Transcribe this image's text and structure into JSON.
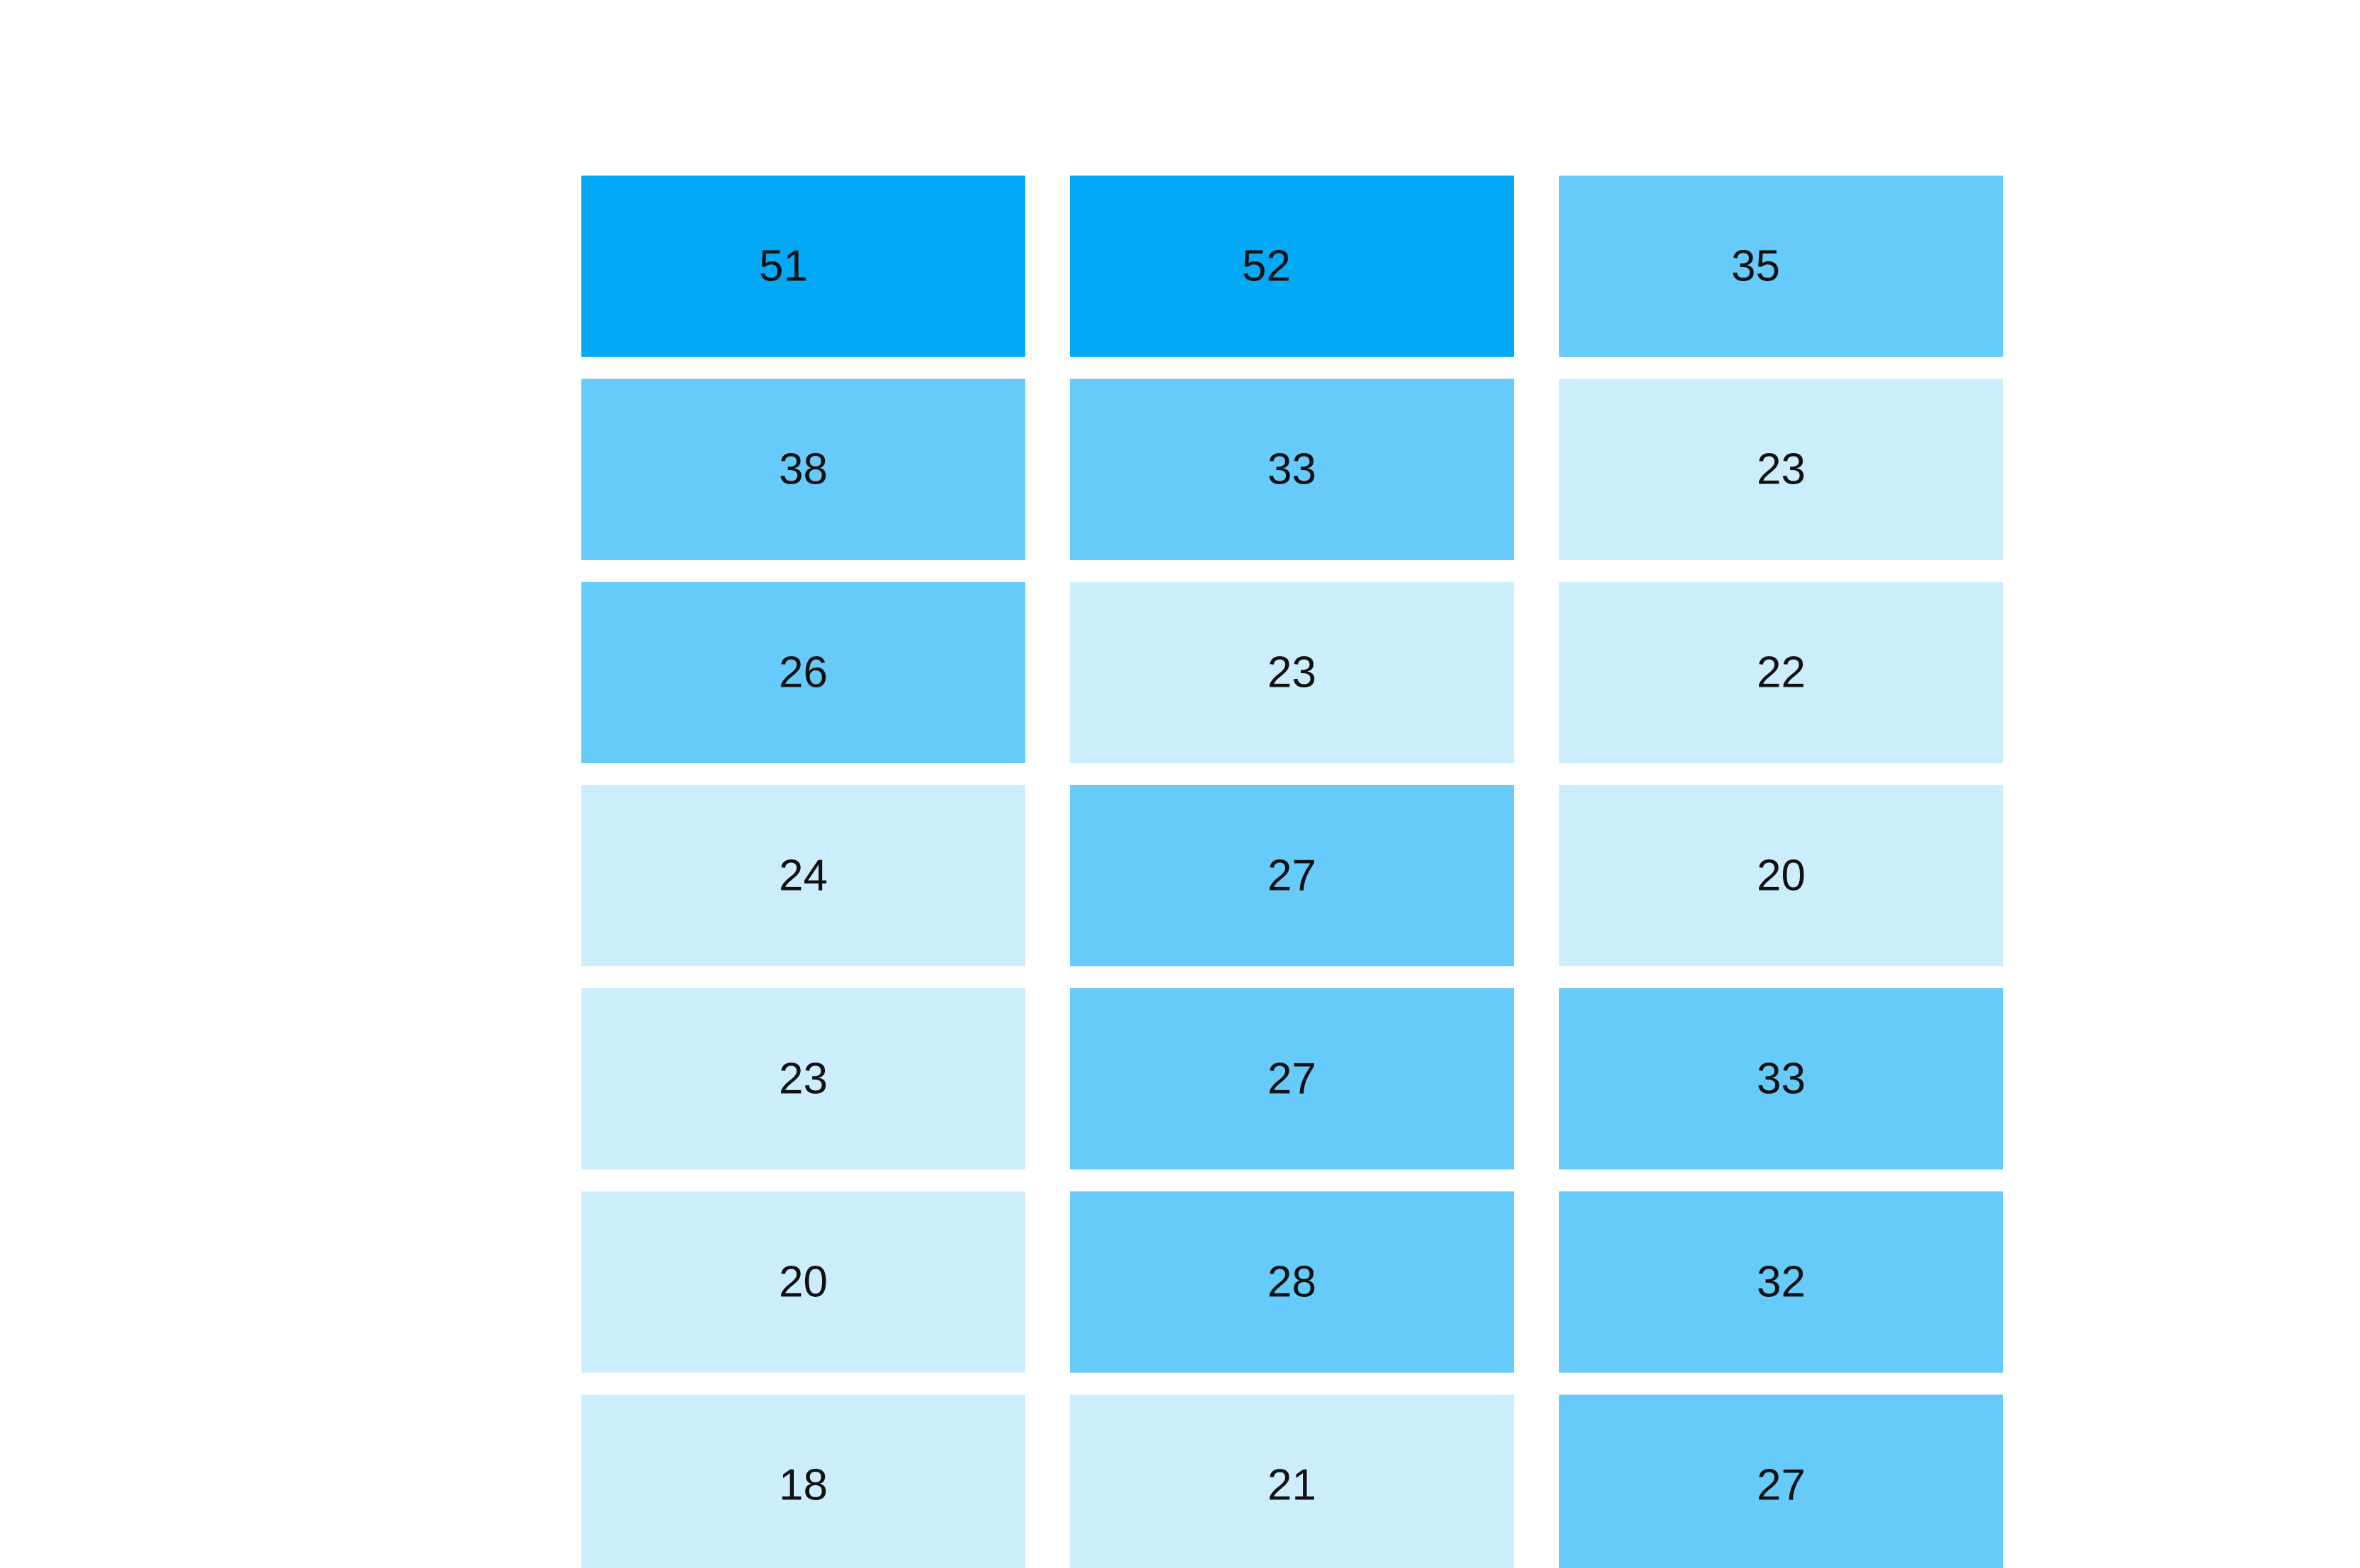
{
  "chart_data": {
    "type": "heatmap",
    "columns": 3,
    "rows": 7,
    "values": [
      [
        51,
        52,
        35
      ],
      [
        38,
        33,
        23
      ],
      [
        26,
        23,
        22
      ],
      [
        24,
        27,
        20
      ],
      [
        23,
        27,
        33
      ],
      [
        20,
        28,
        32
      ],
      [
        18,
        21,
        27
      ]
    ],
    "color_scale": {
      "high": {
        "min": 50,
        "color": "#03a9f4"
      },
      "mid": {
        "min": 25,
        "color": "#66cafa"
      },
      "low": {
        "min": 0,
        "color": "#ccedfc"
      }
    },
    "special_colors": [
      {
        "row": 0,
        "col": 2,
        "color": "#66cafa"
      },
      {
        "row": 1,
        "col": 2,
        "color": "#ccedfc"
      },
      {
        "row": 2,
        "col": 1,
        "color": "#ccedfc"
      },
      {
        "row": 3,
        "col": 0,
        "color": "#ccedfc"
      },
      {
        "row": 4,
        "col": 0,
        "color": "#ccedfc"
      },
      {
        "row": 5,
        "col": 0,
        "color": "#ccedfc"
      },
      {
        "row": 6,
        "col": 0,
        "color": "#ccedfc"
      },
      {
        "row": 6,
        "col": 1,
        "color": "#ccedfc"
      }
    ],
    "label_color": "#111111"
  }
}
